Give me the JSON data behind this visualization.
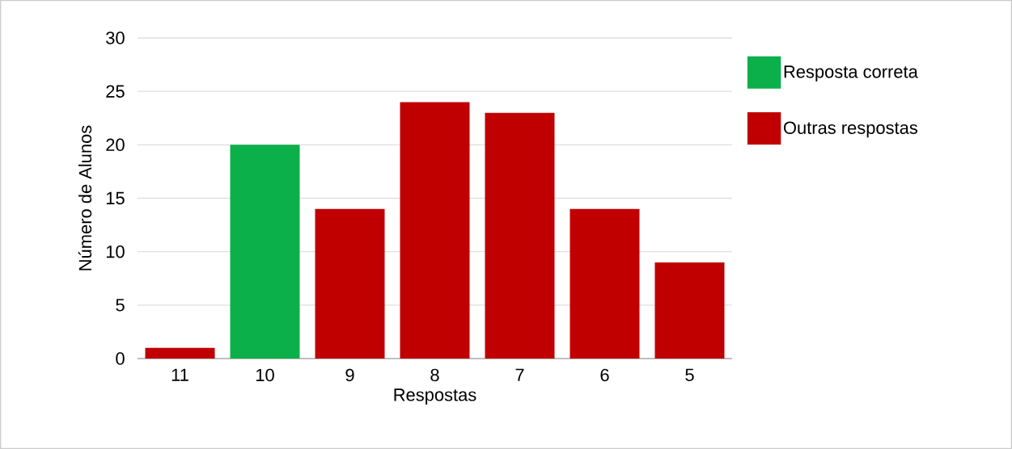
{
  "chart_data": {
    "type": "bar",
    "xlabel": "Respostas",
    "ylabel": "Número de Alunos",
    "categories": [
      "11",
      "10",
      "9",
      "8",
      "7",
      "6",
      "5"
    ],
    "series": [
      {
        "name": "Resposta correta",
        "color": "#0bb04b",
        "values": [
          null,
          20,
          null,
          null,
          null,
          null,
          null
        ]
      },
      {
        "name": "Outras respostas",
        "color": "#c00000",
        "values": [
          1,
          null,
          14,
          24,
          23,
          14,
          9
        ]
      }
    ],
    "ylim": [
      0,
      30
    ],
    "yticks": [
      0,
      5,
      10,
      15,
      20,
      25,
      30
    ],
    "grid": "y",
    "legend": "right"
  }
}
